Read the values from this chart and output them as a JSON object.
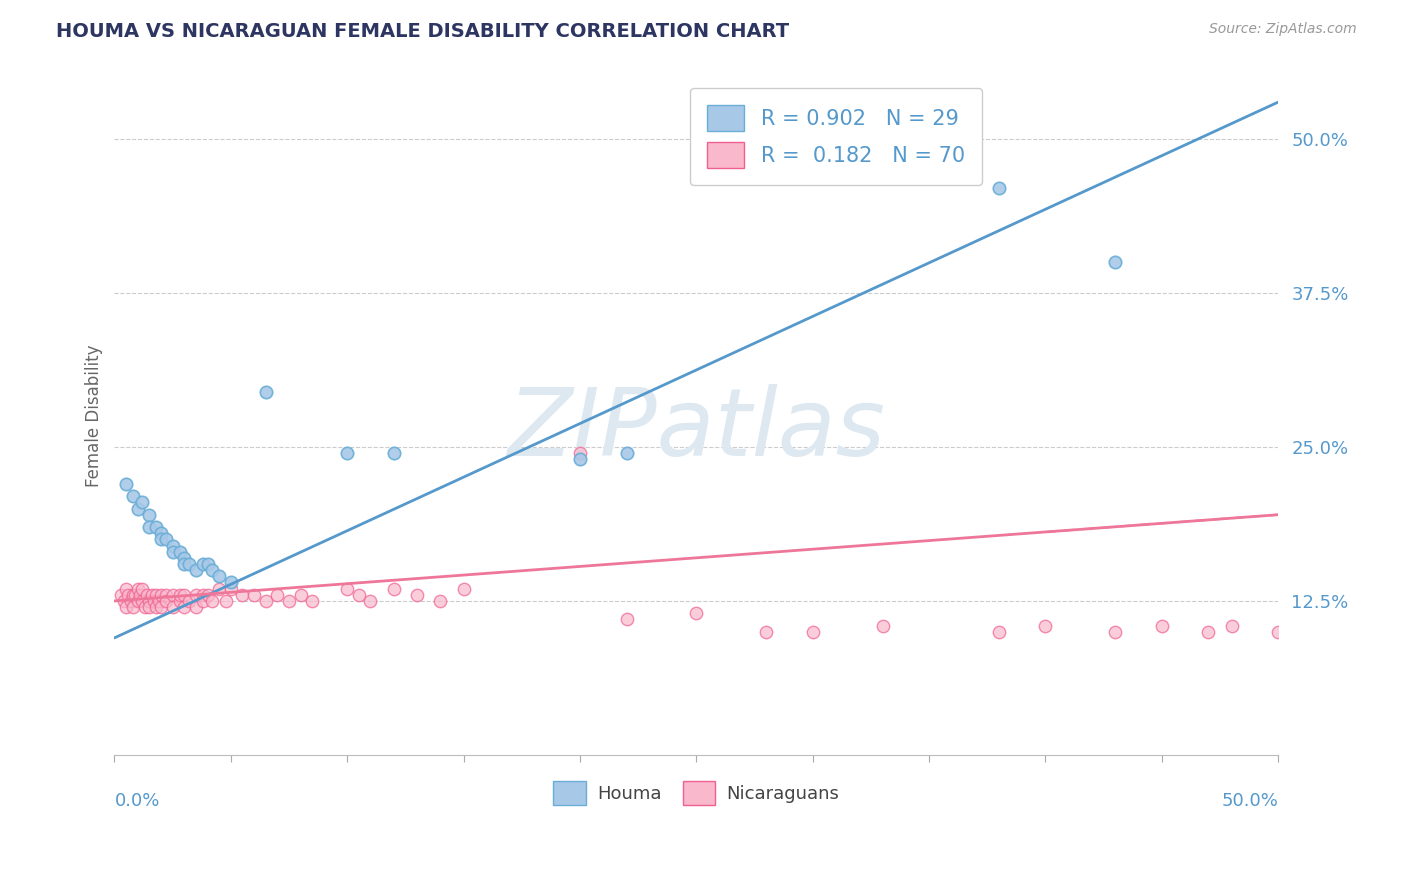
{
  "title": "HOUMA VS NICARAGUAN FEMALE DISABILITY CORRELATION CHART",
  "source": "Source: ZipAtlas.com",
  "ylabel": "Female Disability",
  "xlim": [
    0.0,
    0.5
  ],
  "ylim": [
    0.0,
    0.55
  ],
  "yticks": [
    0.125,
    0.25,
    0.375,
    0.5
  ],
  "ytick_labels": [
    "12.5%",
    "25.0%",
    "37.5%",
    "50.0%"
  ],
  "xtick_positions": [
    0.0,
    0.05,
    0.1,
    0.15,
    0.2,
    0.25,
    0.3,
    0.35,
    0.4,
    0.45,
    0.5
  ],
  "houma_R": 0.902,
  "houma_N": 29,
  "nicaraguan_R": 0.182,
  "nicaraguan_N": 70,
  "houma_dot_color": "#a8c8e8",
  "houma_edge_color": "#6aaed6",
  "nicaraguan_dot_color": "#f9b8cc",
  "nicaraguan_edge_color": "#f06090",
  "line_houma_color": "#5599cc",
  "line_nicaraguan_color": "#ee7799",
  "grid_color": "#cccccc",
  "title_color": "#2d3561",
  "source_color": "#999999",
  "ylabel_color": "#666666",
  "ytick_color": "#5599cc",
  "xtick_label_color": "#5599cc",
  "watermark_text": "ZIPatlas",
  "watermark_color": "#dde8f0",
  "legend_edge_color": "#cccccc",
  "houma_line_x0": 0.0,
  "houma_line_y0": 0.095,
  "houma_line_x1": 0.5,
  "houma_line_y1": 0.53,
  "nic_line_x0": 0.0,
  "nic_line_y0": 0.125,
  "nic_line_x1": 0.5,
  "nic_line_y1": 0.195,
  "houma_x": [
    0.005,
    0.008,
    0.01,
    0.012,
    0.015,
    0.015,
    0.018,
    0.02,
    0.02,
    0.022,
    0.025,
    0.025,
    0.028,
    0.03,
    0.03,
    0.032,
    0.035,
    0.038,
    0.04,
    0.042,
    0.045,
    0.05,
    0.065,
    0.1,
    0.12,
    0.2,
    0.22,
    0.38,
    0.43
  ],
  "houma_y": [
    0.22,
    0.21,
    0.2,
    0.205,
    0.195,
    0.185,
    0.185,
    0.18,
    0.175,
    0.175,
    0.17,
    0.165,
    0.165,
    0.16,
    0.155,
    0.155,
    0.15,
    0.155,
    0.155,
    0.15,
    0.145,
    0.14,
    0.295,
    0.245,
    0.245,
    0.24,
    0.245,
    0.46,
    0.4
  ],
  "nicaraguan_x": [
    0.003,
    0.004,
    0.005,
    0.005,
    0.006,
    0.007,
    0.008,
    0.008,
    0.009,
    0.01,
    0.01,
    0.011,
    0.012,
    0.012,
    0.013,
    0.014,
    0.015,
    0.015,
    0.016,
    0.017,
    0.018,
    0.018,
    0.019,
    0.02,
    0.02,
    0.022,
    0.022,
    0.025,
    0.025,
    0.028,
    0.028,
    0.03,
    0.03,
    0.032,
    0.035,
    0.035,
    0.038,
    0.038,
    0.04,
    0.042,
    0.045,
    0.048,
    0.05,
    0.055,
    0.06,
    0.065,
    0.07,
    0.075,
    0.08,
    0.085,
    0.1,
    0.105,
    0.11,
    0.12,
    0.13,
    0.14,
    0.15,
    0.2,
    0.22,
    0.25,
    0.28,
    0.3,
    0.33,
    0.38,
    0.4,
    0.43,
    0.45,
    0.47,
    0.48,
    0.5
  ],
  "nicaraguan_y": [
    0.13,
    0.125,
    0.135,
    0.12,
    0.13,
    0.125,
    0.13,
    0.12,
    0.13,
    0.135,
    0.125,
    0.13,
    0.125,
    0.135,
    0.12,
    0.13,
    0.125,
    0.12,
    0.13,
    0.125,
    0.12,
    0.13,
    0.125,
    0.13,
    0.12,
    0.13,
    0.125,
    0.13,
    0.12,
    0.125,
    0.13,
    0.13,
    0.12,
    0.125,
    0.13,
    0.12,
    0.13,
    0.125,
    0.13,
    0.125,
    0.135,
    0.125,
    0.135,
    0.13,
    0.13,
    0.125,
    0.13,
    0.125,
    0.13,
    0.125,
    0.135,
    0.13,
    0.125,
    0.135,
    0.13,
    0.125,
    0.135,
    0.245,
    0.11,
    0.115,
    0.1,
    0.1,
    0.105,
    0.1,
    0.105,
    0.1,
    0.105,
    0.1,
    0.105,
    0.1
  ]
}
